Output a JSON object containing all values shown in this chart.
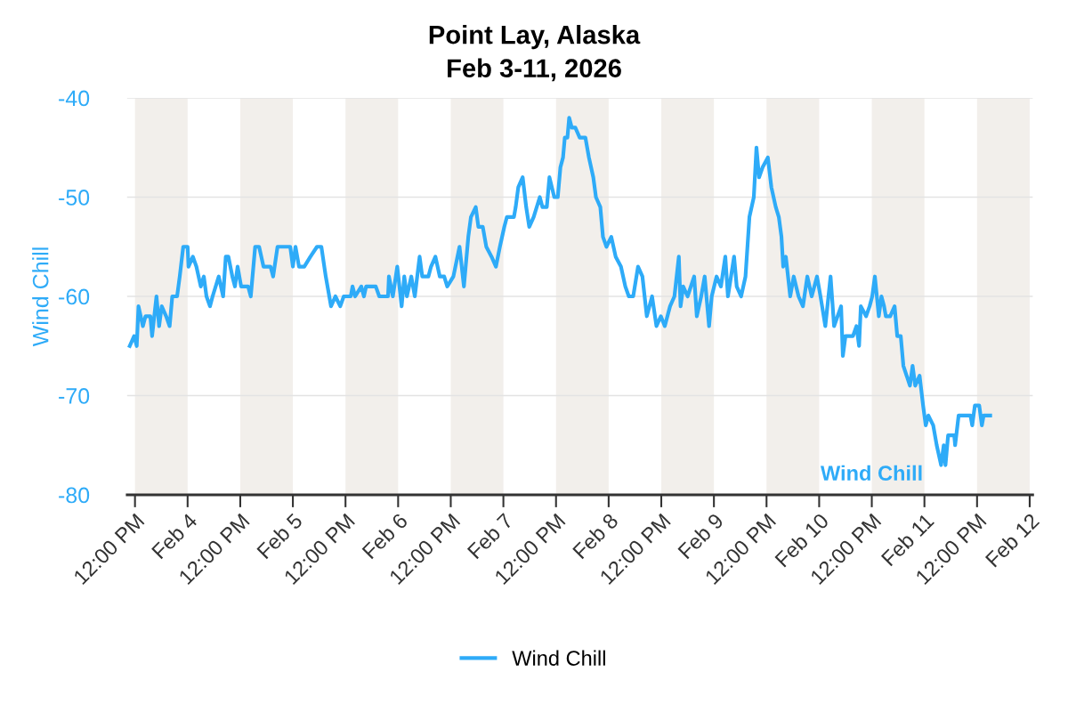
{
  "chart_data": {
    "type": "line",
    "title": "Point Lay, Alaska",
    "subtitle": "Feb 3-11, 2026",
    "ylabel": "Wind Chill",
    "x": [
      "2026-02-03T10:48",
      "2026-02-03T11:48",
      "2026-02-03T12:24",
      "2026-02-03T12:48",
      "2026-02-03T13:48",
      "2026-02-03T14:24",
      "2026-02-03T15:30",
      "2026-02-03T15:54",
      "2026-02-03T16:54",
      "2026-02-03T17:30",
      "2026-02-03T18:06",
      "2026-02-03T19:06",
      "2026-02-03T19:54",
      "2026-02-03T20:30",
      "2026-02-03T21:36",
      "2026-02-03T22:12",
      "2026-02-03T23:00",
      "2026-02-04T00:00",
      "2026-02-04T00:12",
      "2026-02-04T01:12",
      "2026-02-04T02:00",
      "2026-02-04T03:00",
      "2026-02-04T03:42",
      "2026-02-04T04:18",
      "2026-02-04T05:06",
      "2026-02-04T05:42",
      "2026-02-04T07:06",
      "2026-02-04T08:06",
      "2026-02-04T08:42",
      "2026-02-04T09:18",
      "2026-02-04T10:12",
      "2026-02-04T10:48",
      "2026-02-04T11:24",
      "2026-02-04T12:12",
      "2026-02-04T13:48",
      "2026-02-04T14:24",
      "2026-02-04T15:24",
      "2026-02-04T16:18",
      "2026-02-04T17:18",
      "2026-02-04T18:54",
      "2026-02-04T19:30",
      "2026-02-04T20:30",
      "2026-02-04T23:24",
      "2026-02-05T00:00",
      "2026-02-05T00:36",
      "2026-02-05T01:24",
      "2026-02-05T02:36",
      "2026-02-05T04:00",
      "2026-02-05T05:30",
      "2026-02-05T06:30",
      "2026-02-05T07:30",
      "2026-02-05T08:42",
      "2026-02-05T09:42",
      "2026-02-05T10:48",
      "2026-02-05T11:36",
      "2026-02-05T13:12",
      "2026-02-05T13:36",
      "2026-02-05T14:12",
      "2026-02-05T15:36",
      "2026-02-05T16:12",
      "2026-02-05T16:42",
      "2026-02-05T17:42",
      "2026-02-05T18:54",
      "2026-02-05T19:42",
      "2026-02-05T21:42",
      "2026-02-05T21:54",
      "2026-02-05T22:48",
      "2026-02-05T23:48",
      "2026-02-06T00:48",
      "2026-02-06T01:24",
      "2026-02-06T02:00",
      "2026-02-06T03:00",
      "2026-02-06T03:48",
      "2026-02-06T04:54",
      "2026-02-06T05:30",
      "2026-02-06T06:54",
      "2026-02-06T07:30",
      "2026-02-06T08:30",
      "2026-02-06T09:30",
      "2026-02-06T10:30",
      "2026-02-06T11:12",
      "2026-02-06T12:36",
      "2026-02-06T14:00",
      "2026-02-06T15:00",
      "2026-02-06T16:00",
      "2026-02-06T16:36",
      "2026-02-06T17:42",
      "2026-02-06T18:18",
      "2026-02-06T19:18",
      "2026-02-06T20:06",
      "2026-02-06T21:18",
      "2026-02-06T22:18",
      "2026-02-06T23:12",
      "2026-02-07T00:12",
      "2026-02-07T00:48",
      "2026-02-07T02:24",
      "2026-02-07T02:48",
      "2026-02-07T03:24",
      "2026-02-07T04:24",
      "2026-02-07T05:12",
      "2026-02-07T05:54",
      "2026-02-07T06:54",
      "2026-02-07T08:18",
      "2026-02-07T08:54",
      "2026-02-07T09:54",
      "2026-02-07T10:30",
      "2026-02-07T11:36",
      "2026-02-07T12:24",
      "2026-02-07T13:00",
      "2026-02-07T13:36",
      "2026-02-07T14:00",
      "2026-02-07T14:36",
      "2026-02-07T15:00",
      "2026-02-07T15:36",
      "2026-02-07T16:24",
      "2026-02-07T17:24",
      "2026-02-07T18:42",
      "2026-02-07T19:30",
      "2026-02-07T20:30",
      "2026-02-07T21:06",
      "2026-02-07T22:06",
      "2026-02-07T22:42",
      "2026-02-07T23:30",
      "2026-02-08T00:36",
      "2026-02-08T01:36",
      "2026-02-08T02:48",
      "2026-02-08T03:48",
      "2026-02-08T04:36",
      "2026-02-08T05:36",
      "2026-02-08T06:42",
      "2026-02-08T07:42",
      "2026-02-08T08:42",
      "2026-02-08T09:54",
      "2026-02-08T10:54",
      "2026-02-08T11:54",
      "2026-02-08T12:48",
      "2026-02-08T14:00",
      "2026-02-08T15:00",
      "2026-02-08T16:00",
      "2026-02-08T16:24",
      "2026-02-08T17:00",
      "2026-02-08T18:00",
      "2026-02-08T19:30",
      "2026-02-08T20:06",
      "2026-02-08T21:06",
      "2026-02-08T21:54",
      "2026-02-08T22:54",
      "2026-02-08T23:30",
      "2026-02-09T00:36",
      "2026-02-09T01:36",
      "2026-02-09T02:36",
      "2026-02-09T03:12",
      "2026-02-09T04:36",
      "2026-02-09T05:12",
      "2026-02-09T06:12",
      "2026-02-09T07:12",
      "2026-02-09T08:06",
      "2026-02-09T09:06",
      "2026-02-09T09:42",
      "2026-02-09T10:18",
      "2026-02-09T11:06",
      "2026-02-09T12:18",
      "2026-02-09T13:06",
      "2026-02-09T14:06",
      "2026-02-09T14:48",
      "2026-02-09T15:24",
      "2026-02-09T15:48",
      "2026-02-09T16:24",
      "2026-02-09T17:24",
      "2026-02-09T18:12",
      "2026-02-09T19:18",
      "2026-02-09T20:18",
      "2026-02-09T21:18",
      "2026-02-09T22:18",
      "2026-02-09T23:30",
      "2026-02-10T00:18",
      "2026-02-10T01:24",
      "2026-02-10T02:36",
      "2026-02-10T03:24",
      "2026-02-10T05:00",
      "2026-02-10T05:24",
      "2026-02-10T06:00",
      "2026-02-10T07:42",
      "2026-02-10T08:30",
      "2026-02-10T09:06",
      "2026-02-10T09:30",
      "2026-02-10T10:42",
      "2026-02-10T11:30",
      "2026-02-10T12:06",
      "2026-02-10T12:42",
      "2026-02-10T13:36",
      "2026-02-10T14:12",
      "2026-02-10T14:48",
      "2026-02-10T15:12",
      "2026-02-10T16:12",
      "2026-02-10T17:12",
      "2026-02-10T17:48",
      "2026-02-10T18:36",
      "2026-02-10T19:12",
      "2026-02-10T20:42",
      "2026-02-10T21:18",
      "2026-02-10T21:54",
      "2026-02-10T22:54",
      "2026-02-10T23:42",
      "2026-02-11T00:18",
      "2026-02-11T00:54",
      "2026-02-11T02:00",
      "2026-02-11T02:48",
      "2026-02-11T03:48",
      "2026-02-11T04:24",
      "2026-02-11T04:48",
      "2026-02-11T05:24",
      "2026-02-11T06:48",
      "2026-02-11T07:00",
      "2026-02-11T07:48",
      "2026-02-11T10:30",
      "2026-02-11T10:54",
      "2026-02-11T11:30",
      "2026-02-11T12:30",
      "2026-02-11T13:06",
      "2026-02-11T13:30",
      "2026-02-11T15:00"
    ],
    "series": [
      {
        "name": "Wind Chill",
        "color": "#2eabf8",
        "values": [
          -65,
          -64,
          -65,
          -61,
          -63,
          -62,
          -62,
          -64,
          -60,
          -63,
          -61,
          -62,
          -63,
          -60,
          -60,
          -58,
          -55,
          -55,
          -57,
          -56,
          -57,
          -59,
          -58,
          -60,
          -61,
          -60,
          -58,
          -60,
          -56,
          -56,
          -58,
          -59,
          -57,
          -59,
          -59,
          -60,
          -55,
          -55,
          -57,
          -57,
          -58,
          -55,
          -55,
          -57,
          -55,
          -57,
          -57,
          -56,
          -55,
          -55,
          -58,
          -61,
          -60,
          -61,
          -60,
          -60,
          -59,
          -60,
          -59,
          -60,
          -59,
          -59,
          -59,
          -60,
          -60,
          -58,
          -60,
          -57,
          -61,
          -58,
          -60,
          -58,
          -60,
          -56,
          -58,
          -58,
          -57,
          -56,
          -58,
          -58,
          -59,
          -58,
          -55,
          -59,
          -54,
          -52,
          -51,
          -53,
          -53,
          -55,
          -56,
          -57,
          -55,
          -53,
          -52,
          -52,
          -51,
          -49,
          -48,
          -51,
          -53,
          -52,
          -50,
          -51,
          -51,
          -48,
          -50,
          -50,
          -47,
          -46,
          -44,
          -44,
          -42,
          -43,
          -43,
          -44,
          -44,
          -46,
          -48,
          -50,
          -51,
          -54,
          -55,
          -54,
          -56,
          -57,
          -59,
          -60,
          -60,
          -57,
          -58,
          -62,
          -60,
          -63,
          -62,
          -63,
          -61,
          -60,
          -56,
          -61,
          -59,
          -60,
          -58,
          -62,
          -60,
          -58,
          -63,
          -60,
          -58,
          -59,
          -56,
          -60,
          -56,
          -59,
          -60,
          -58,
          -52,
          -50,
          -45,
          -48,
          -47,
          -46,
          -49,
          -51,
          -52,
          -54,
          -57,
          -56,
          -60,
          -58,
          -60,
          -61,
          -58,
          -60,
          -58,
          -60,
          -63,
          -58,
          -63,
          -61,
          -66,
          -64,
          -64,
          -63,
          -65,
          -61,
          -62,
          -61,
          -60,
          -58,
          -62,
          -60,
          -61,
          -62,
          -62,
          -61,
          -64,
          -64,
          -67,
          -69,
          -67,
          -69,
          -68,
          -71,
          -73,
          -72,
          -73,
          -75,
          -77,
          -75,
          -77,
          -74,
          -74,
          -75,
          -72,
          -72,
          -73,
          -71,
          -71,
          -73,
          -72,
          -72
        ]
      }
    ],
    "xlim": [
      "2026-02-03T10:12",
      "2026-02-12T00:42"
    ],
    "xticks": [
      {
        "value": "2026-02-03T12:00",
        "label": "12:00 PM"
      },
      {
        "value": "2026-02-04",
        "label": "Feb 4"
      },
      {
        "value": "2026-02-04T12:00",
        "label": "12:00 PM"
      },
      {
        "value": "2026-02-05",
        "label": "Feb 5"
      },
      {
        "value": "2026-02-05T12:00",
        "label": "12:00 PM"
      },
      {
        "value": "2026-02-06",
        "label": "Feb 6"
      },
      {
        "value": "2026-02-06T12:00",
        "label": "12:00 PM"
      },
      {
        "value": "2026-02-07",
        "label": "Feb 7"
      },
      {
        "value": "2026-02-07T12:00",
        "label": "12:00 PM"
      },
      {
        "value": "2026-02-08",
        "label": "Feb 8"
      },
      {
        "value": "2026-02-08T12:00",
        "label": "12:00 PM"
      },
      {
        "value": "2026-02-09",
        "label": "Feb 9"
      },
      {
        "value": "2026-02-09T12:00",
        "label": "12:00 PM"
      },
      {
        "value": "2026-02-10",
        "label": "Feb 10"
      },
      {
        "value": "2026-02-10T12:00",
        "label": "12:00 PM"
      },
      {
        "value": "2026-02-11",
        "label": "Feb 11"
      },
      {
        "value": "2026-02-11T12:00",
        "label": "12:00 PM"
      },
      {
        "value": "2026-02-12",
        "label": "Feb 12"
      }
    ],
    "ylim": [
      -80,
      -40
    ],
    "yticks": [
      -80,
      -70,
      -60,
      -50,
      -40
    ],
    "bands": [
      {
        "axis": "x",
        "from": "2026-02-03T12:00",
        "to": "2026-02-04",
        "color": "#f2efeb"
      },
      {
        "axis": "x",
        "from": "2026-02-04T12:00",
        "to": "2026-02-05",
        "color": "#f2efeb"
      },
      {
        "axis": "x",
        "from": "2026-02-05T12:00",
        "to": "2026-02-06",
        "color": "#f2efeb"
      },
      {
        "axis": "x",
        "from": "2026-02-06T12:00",
        "to": "2026-02-07",
        "color": "#f2efeb"
      },
      {
        "axis": "x",
        "from": "2026-02-07T12:00",
        "to": "2026-02-08",
        "color": "#f2efeb"
      },
      {
        "axis": "x",
        "from": "2026-02-08T12:00",
        "to": "2026-02-09",
        "color": "#f2efeb"
      },
      {
        "axis": "x",
        "from": "2026-02-09T12:00",
        "to": "2026-02-10",
        "color": "#f2efeb"
      },
      {
        "axis": "x",
        "from": "2026-02-10T12:00",
        "to": "2026-02-11",
        "color": "#f2efeb"
      },
      {
        "axis": "x",
        "from": "2026-02-11T12:00",
        "to": "2026-02-12",
        "color": "#f2efeb"
      }
    ],
    "annotations": [
      {
        "text": "Wind Chill",
        "x": "2026-02-10T12:00",
        "y": -78
      }
    ],
    "grid": "y",
    "legend": "bottom",
    "marker": "none",
    "line_style": "solid"
  }
}
